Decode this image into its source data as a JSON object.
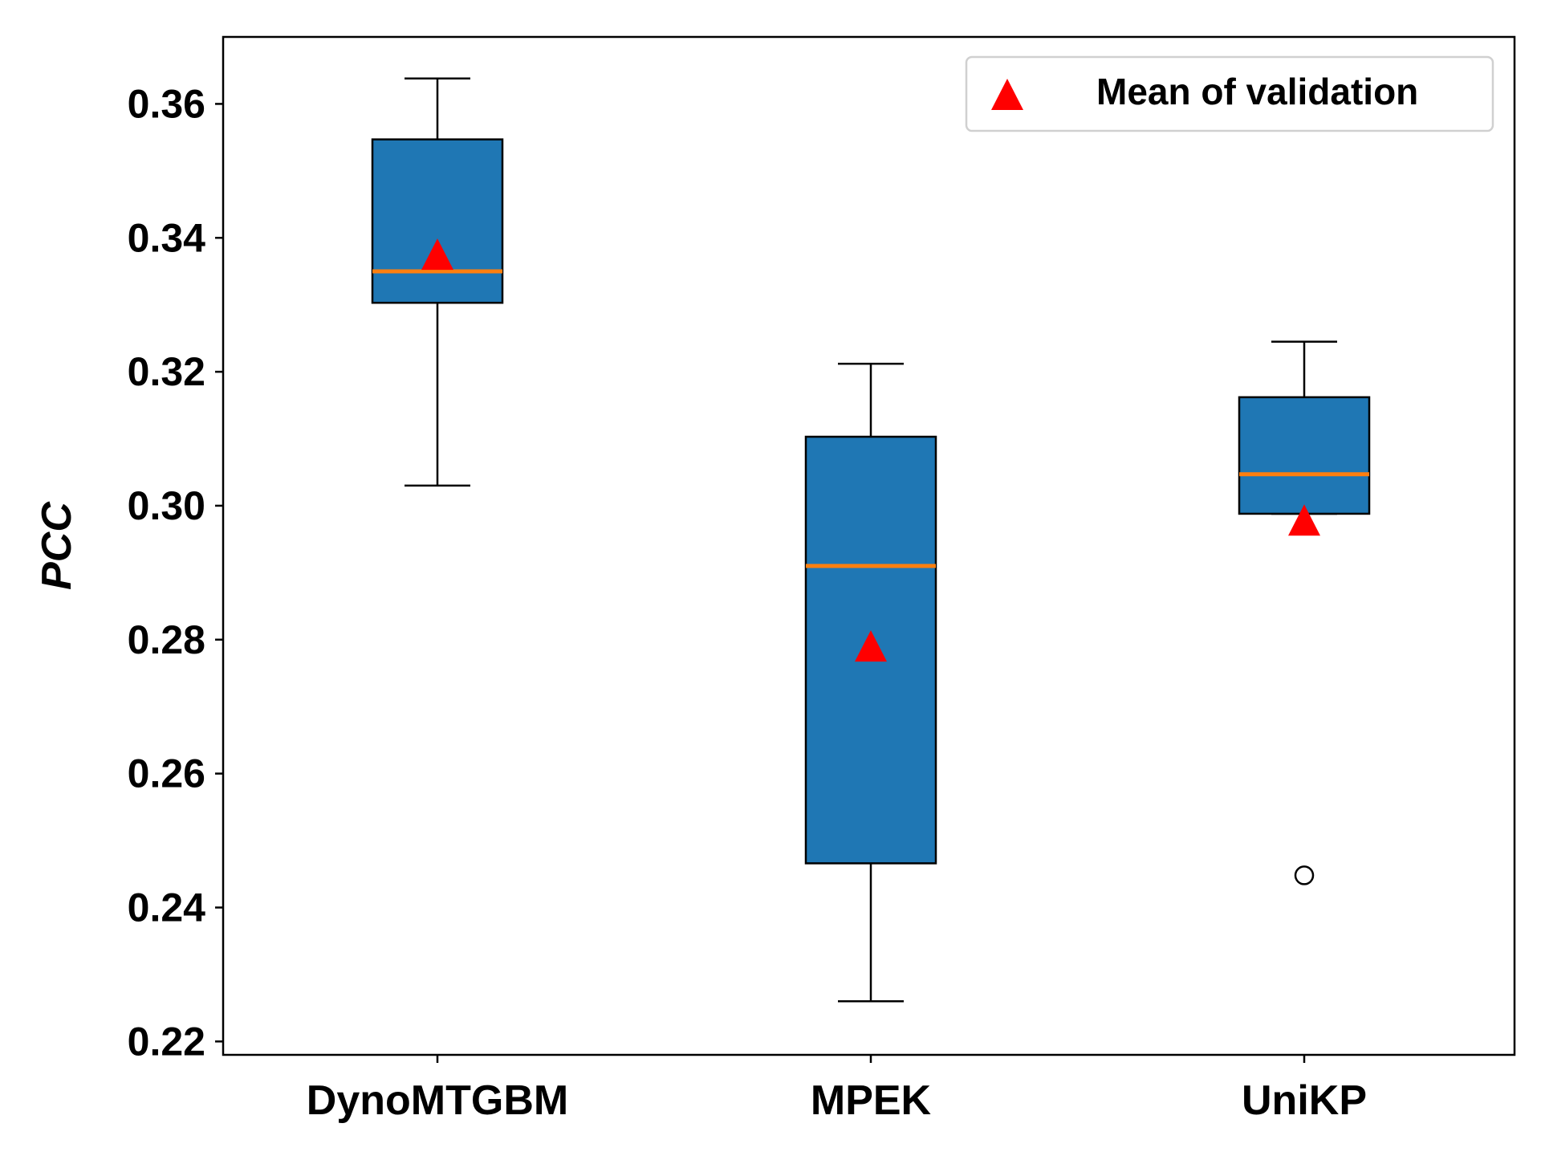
{
  "chart_data": {
    "type": "boxplot",
    "title": "",
    "xlabel": "",
    "ylabel": "PCC",
    "ylim": [
      0.218,
      0.37
    ],
    "yticks": [
      0.22,
      0.24,
      0.26,
      0.28,
      0.3,
      0.32,
      0.34,
      0.36
    ],
    "ytick_labels": [
      "0.22",
      "0.24",
      "0.26",
      "0.28",
      "0.30",
      "0.32",
      "0.34",
      "0.36"
    ],
    "categories": [
      "DynoMTGBM",
      "MPEK",
      "UniKP"
    ],
    "boxes": [
      {
        "label": "DynoMTGBM",
        "whisker_low": 0.303,
        "q1": 0.3303,
        "median": 0.335,
        "q3": 0.3547,
        "whisker_high": 0.3638,
        "mean": 0.3375,
        "outliers": []
      },
      {
        "label": "MPEK",
        "whisker_low": 0.226,
        "q1": 0.2466,
        "median": 0.291,
        "q3": 0.3103,
        "whisker_high": 0.3212,
        "mean": 0.279,
        "outliers": []
      },
      {
        "label": "UniKP",
        "whisker_low": 0.2988,
        "q1": 0.2988,
        "median": 0.3047,
        "q3": 0.3162,
        "whisker_high": 0.3245,
        "mean": 0.2978,
        "outliers": [
          0.2448
        ]
      }
    ],
    "legend": {
      "position": "top-right",
      "entries": [
        {
          "marker": "triangle",
          "label": "Mean of validation"
        }
      ]
    },
    "colors": {
      "box": "#1f77b4",
      "median": "#ff7f0e",
      "mean": "#ff0000",
      "line": "#000000"
    },
    "grid": false
  }
}
